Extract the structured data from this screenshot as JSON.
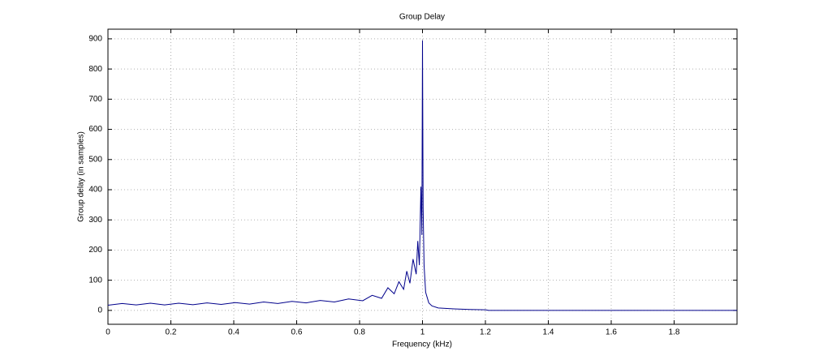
{
  "chart_data": {
    "type": "line",
    "title": "Group Delay",
    "x_label": "Frequency (kHz)",
    "y_label": "Group delay (in samples)",
    "x": [
      0,
      0.045,
      0.09,
      0.135,
      0.18,
      0.225,
      0.27,
      0.315,
      0.36,
      0.405,
      0.45,
      0.495,
      0.54,
      0.585,
      0.63,
      0.675,
      0.72,
      0.765,
      0.81,
      0.84,
      0.87,
      0.89,
      0.91,
      0.925,
      0.94,
      0.95,
      0.96,
      0.97,
      0.98,
      0.985,
      0.99,
      0.995,
      0.998,
      1.0,
      1.002,
      1.005,
      1.01,
      1.02,
      1.03,
      1.05,
      1.1,
      1.15,
      1.2,
      1.21,
      1.4,
      1.6,
      1.8,
      2.0
    ],
    "values": [
      17,
      23,
      18,
      24,
      18,
      24,
      19,
      25,
      20,
      26,
      21,
      28,
      23,
      30,
      25,
      33,
      28,
      38,
      32,
      50,
      40,
      75,
      55,
      95,
      70,
      130,
      90,
      170,
      120,
      230,
      150,
      410,
      250,
      895,
      340,
      150,
      60,
      25,
      15,
      8,
      5,
      3,
      2,
      0,
      0,
      0,
      0,
      0
    ],
    "color": "#00008b",
    "xlim": [
      0,
      2
    ],
    "xticks": [
      0,
      0.2,
      0.4,
      0.6,
      0.8,
      1,
      1.2,
      1.4,
      1.6,
      1.8
    ],
    "ylim": [
      -46,
      932
    ],
    "yticks": [
      0,
      100,
      200,
      300,
      400,
      500,
      600,
      700,
      800,
      900
    ],
    "grid": true
  }
}
